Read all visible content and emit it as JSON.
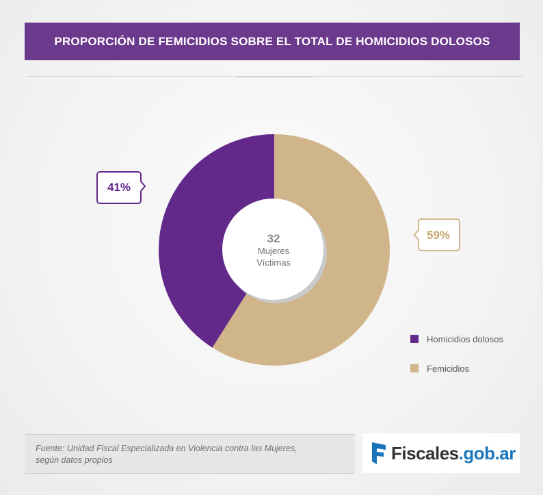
{
  "header": {
    "title": "PROPORCIÓN DE FEMICIDIOS SOBRE EL TOTAL DE HOMICIDIOS DOLOSOS"
  },
  "chart_data": {
    "type": "pie",
    "title": "PROPORCIÓN DE FEMICIDIOS SOBRE EL TOTAL DE HOMICIDIOS DOLOSOS",
    "center_label": {
      "number": "32",
      "line1": "Mujeres",
      "line2": "Víctimas"
    },
    "categories": [
      "Homicidios dolosos",
      "Femicidios"
    ],
    "values": [
      41,
      59
    ],
    "labels": [
      "41%",
      "59%"
    ],
    "colors": [
      "#62298b",
      "#d0b58a"
    ],
    "legend_position": "right"
  },
  "legend": {
    "items": [
      {
        "label": "Homicidios dolosos",
        "color": "#62298b"
      },
      {
        "label": "Femicidios",
        "color": "#d0b58a"
      }
    ]
  },
  "footer": {
    "source_line1": "Fuente: Unidad Fiscal Especializada en Violencia contra las Mujeres,",
    "source_line2": "según datos propios",
    "logo_text_a": "Fiscales",
    "logo_text_b": ".gob.ar",
    "logo_icon": "flag-f-icon"
  }
}
